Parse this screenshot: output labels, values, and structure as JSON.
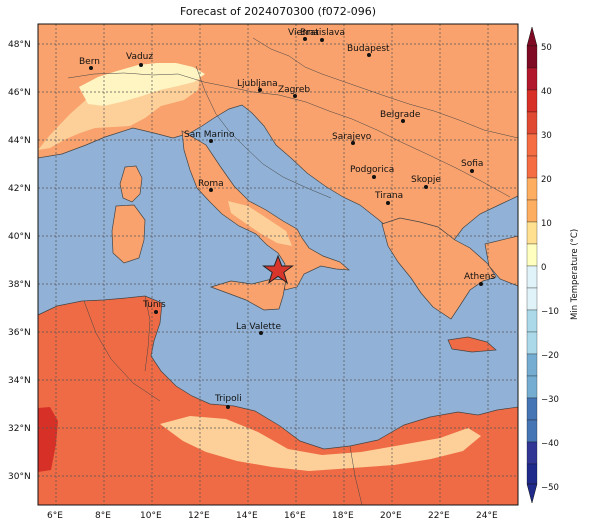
{
  "title": "Forecast of 2024070300 (f072-096)",
  "map": {
    "lat_ticks": [
      "48°N",
      "46°N",
      "44°N",
      "42°N",
      "40°N",
      "38°N",
      "36°N",
      "34°N",
      "32°N",
      "30°N"
    ],
    "lon_ticks": [
      "6°E",
      "8°E",
      "10°E",
      "12°E",
      "14°E",
      "16°E",
      "18°E",
      "20°E",
      "22°E",
      "24°E"
    ],
    "marker": {
      "icon": "star-marker-icon",
      "color": "#d9362b"
    },
    "cities": [
      {
        "name": "Bern"
      },
      {
        "name": "Vaduz"
      },
      {
        "name": "Vienna"
      },
      {
        "name": "Bratislava"
      },
      {
        "name": "Budapest"
      },
      {
        "name": "Ljubljana"
      },
      {
        "name": "Zagreb"
      },
      {
        "name": "Belgrade"
      },
      {
        "name": "San Marino"
      },
      {
        "name": "Sarajevo"
      },
      {
        "name": "Sofia"
      },
      {
        "name": "Roma"
      },
      {
        "name": "Podgorica"
      },
      {
        "name": "Skopje"
      },
      {
        "name": "Tirana"
      },
      {
        "name": "Athens"
      },
      {
        "name": "Tunis"
      },
      {
        "name": "La Valette"
      },
      {
        "name": "Tripoli"
      }
    ]
  },
  "colorbar": {
    "label": "Min Temperature (°C)",
    "ticks": [
      "50",
      "40",
      "30",
      "20",
      "10",
      "0",
      "−10",
      "−20",
      "−30",
      "−40",
      "−50"
    ],
    "colors_top_to_bottom": [
      "#7f0a23",
      "#b2182b",
      "#d73027",
      "#f46d43",
      "#fdae61",
      "#fee090",
      "#ffffbf",
      "#e0f3f8",
      "#abd9e9",
      "#74add1",
      "#4575b4",
      "#313695",
      "#1f2a8a"
    ]
  },
  "colors": {
    "sea": "#91b2d6",
    "land_warm": "#f9a26d",
    "land_hot": "#ef6b45",
    "land_mild": "#fdd09a",
    "land_cool": "#fff5c2"
  }
}
